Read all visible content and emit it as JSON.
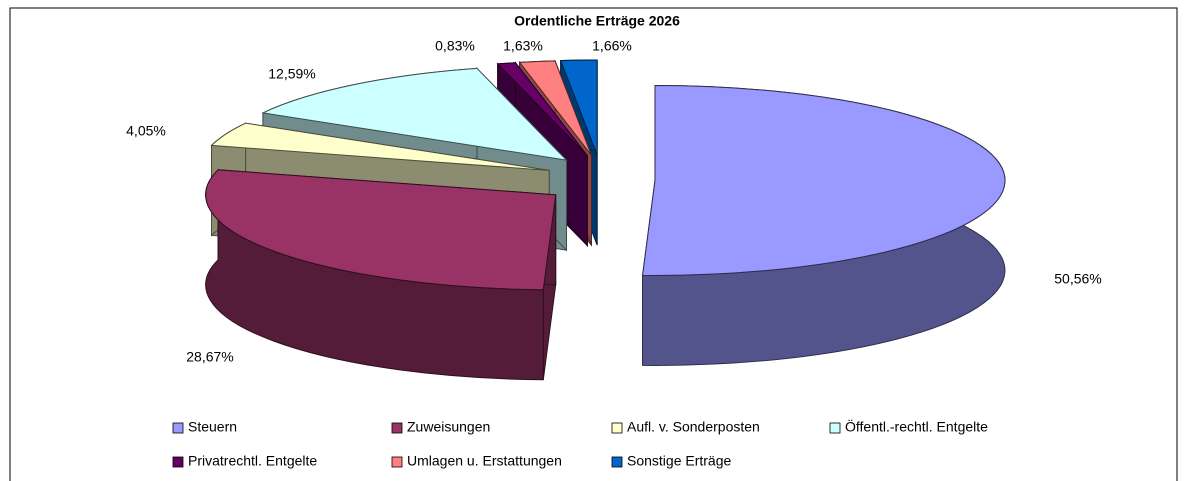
{
  "chart_data": {
    "type": "pie3d",
    "title": "Ordentliche Erträge 2026",
    "categories": [
      "Steuern",
      "Zuweisungen",
      "Aufl. v. Sonderposten",
      "Öffentl.-rechtl. Entgelte",
      "Privatrechtl. Entgelte",
      "Umlagen u. Erstattungen",
      "Sonstige Erträge"
    ],
    "values": [
      50.56,
      28.67,
      4.05,
      12.59,
      0.83,
      1.63,
      1.66
    ],
    "value_labels": [
      "50,56%",
      "28,67%",
      "4,05%",
      "12,59%",
      "0,83%",
      "1,63%",
      "1,66%"
    ],
    "colors": [
      "#9999ff",
      "#993366",
      "#ffffcc",
      "#ccffff",
      "#660066",
      "#ff8080",
      "#0066cc"
    ],
    "legend": "bottom"
  }
}
